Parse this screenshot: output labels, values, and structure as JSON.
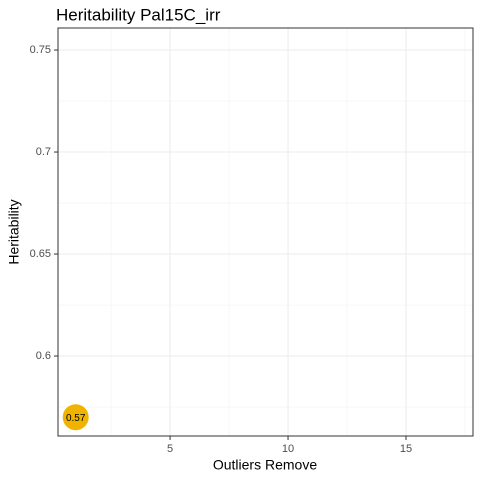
{
  "chart_data": {
    "type": "scatter",
    "title": "Heritability Pal15C_irr",
    "x_label": "Outliers Remove",
    "y_label": "Heritability",
    "x": [
      1
    ],
    "values": [
      0.57
    ],
    "color": "#f0b400",
    "xlim": [
      0.25,
      17.84
    ],
    "ylim": [
      0.5608,
      0.7608
    ],
    "xticks": [
      5,
      10,
      15
    ],
    "yticks": [
      0.6,
      0.65,
      0.7,
      0.75
    ],
    "x_minor_grid": [
      2.5,
      7.5,
      12.5,
      17.5
    ],
    "y_minor_grid": [
      0.575,
      0.625,
      0.675,
      0.725
    ],
    "grid": true
  }
}
